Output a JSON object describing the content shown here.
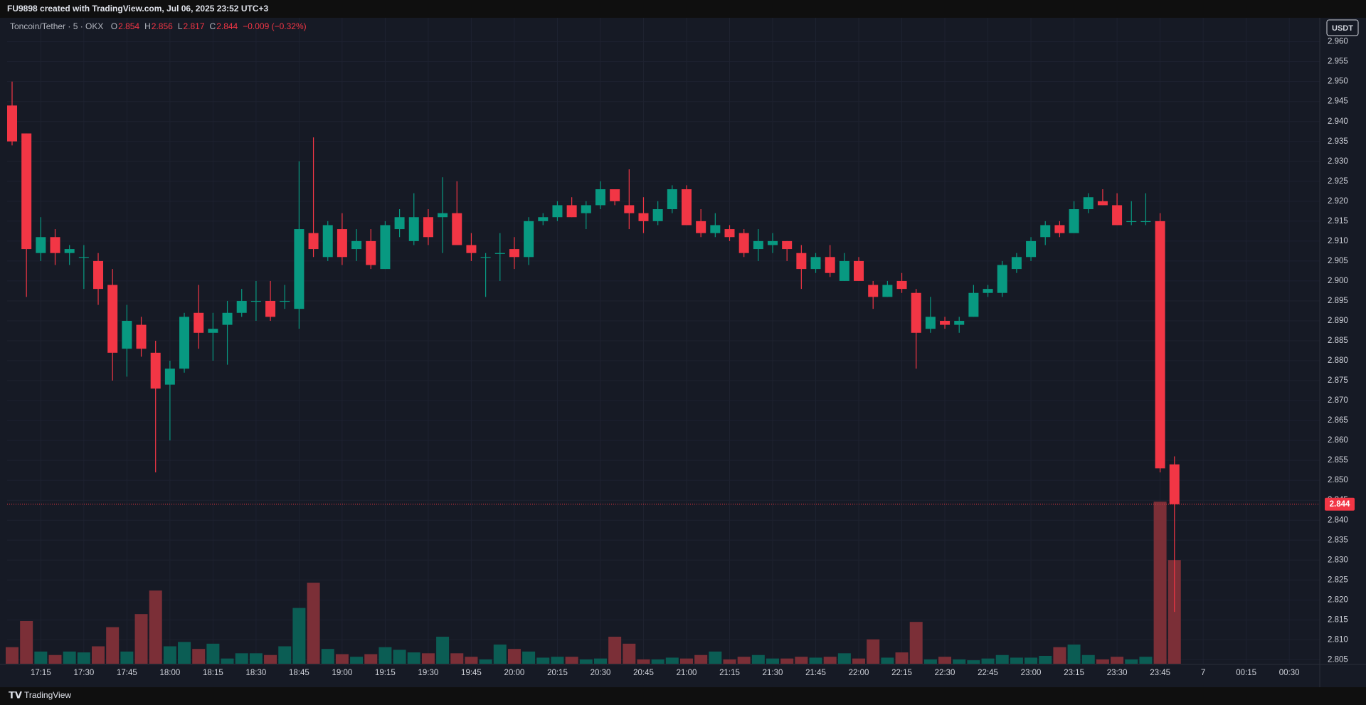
{
  "header": "FU9898 created with TradingView.com, Jul 06, 2025 23:52 UTC+3",
  "footer": "TradingView",
  "currency": "USDT",
  "chart_data": {
    "type": "candlestick",
    "symbol": "Toncoin/Tether · 5 · OKX",
    "ohlc_labels": [
      "O",
      "H",
      "L",
      "C"
    ],
    "change_label": "−0.009 (−0.32%)",
    "up_color": "#089981",
    "down_color": "#f23645",
    "volume_up_color": "#0b5d54",
    "volume_down_color": "#7b2f37",
    "grid": true,
    "x": [
      "17:05",
      "17:10",
      "17:15",
      "17:20",
      "17:25",
      "17:30",
      "17:35",
      "17:40",
      "17:45",
      "17:50",
      "17:55",
      "18:00",
      "18:05",
      "18:10",
      "18:15",
      "18:20",
      "18:25",
      "18:30",
      "18:35",
      "18:40",
      "18:45",
      "18:50",
      "18:55",
      "19:00",
      "19:05",
      "19:10",
      "19:15",
      "19:20",
      "19:25",
      "19:30",
      "19:35",
      "19:40",
      "19:45",
      "19:50",
      "19:55",
      "20:00",
      "20:05",
      "20:10",
      "20:15",
      "20:20",
      "20:25",
      "20:30",
      "20:35",
      "20:40",
      "20:45",
      "20:50",
      "20:55",
      "21:00",
      "21:05",
      "21:10",
      "21:15",
      "21:20",
      "21:25",
      "21:30",
      "21:35",
      "21:40",
      "21:45",
      "21:50",
      "21:55",
      "22:00",
      "22:05",
      "22:10",
      "22:15",
      "22:20",
      "22:25",
      "22:30",
      "22:35",
      "22:40",
      "22:45",
      "22:50",
      "22:55",
      "23:00",
      "23:05",
      "23:10",
      "23:15",
      "23:20",
      "23:25",
      "23:30",
      "23:35",
      "23:40",
      "23:45",
      "23:50"
    ],
    "open": [
      2.944,
      2.937,
      2.907,
      2.911,
      2.907,
      2.906,
      2.905,
      2.899,
      2.883,
      2.889,
      2.882,
      2.874,
      2.878,
      2.892,
      2.887,
      2.889,
      2.892,
      2.895,
      2.895,
      2.895,
      2.893,
      2.912,
      2.906,
      2.913,
      2.908,
      2.91,
      2.903,
      2.913,
      2.91,
      2.916,
      2.916,
      2.917,
      2.909,
      2.906,
      2.907,
      2.908,
      2.906,
      2.915,
      2.916,
      2.919,
      2.917,
      2.919,
      2.923,
      2.919,
      2.917,
      2.915,
      2.918,
      2.923,
      2.915,
      2.912,
      2.913,
      2.912,
      2.908,
      2.909,
      2.91,
      2.907,
      2.903,
      2.906,
      2.9,
      2.905,
      2.899,
      2.896,
      2.9,
      2.897,
      2.888,
      2.89,
      2.889,
      2.891,
      2.897,
      2.897,
      2.903,
      2.906,
      2.911,
      2.914,
      2.912,
      2.918,
      2.92,
      2.919,
      2.915,
      2.915,
      2.915,
      2.854
    ],
    "high": [
      2.95,
      2.937,
      2.916,
      2.913,
      2.909,
      2.909,
      2.907,
      2.903,
      2.894,
      2.891,
      2.885,
      2.88,
      2.892,
      2.899,
      2.892,
      2.895,
      2.898,
      2.9,
      2.9,
      2.899,
      2.93,
      2.936,
      2.915,
      2.917,
      2.913,
      2.913,
      2.915,
      2.918,
      2.922,
      2.918,
      2.926,
      2.925,
      2.912,
      2.907,
      2.912,
      2.911,
      2.916,
      2.917,
      2.92,
      2.921,
      2.92,
      2.925,
      2.923,
      2.928,
      2.921,
      2.92,
      2.924,
      2.924,
      2.918,
      2.917,
      2.914,
      2.913,
      2.913,
      2.912,
      2.91,
      2.909,
      2.907,
      2.909,
      2.907,
      2.906,
      2.9,
      2.9,
      2.902,
      2.898,
      2.896,
      2.891,
      2.891,
      2.899,
      2.899,
      2.905,
      2.907,
      2.911,
      2.915,
      2.915,
      2.92,
      2.922,
      2.923,
      2.922,
      2.92,
      2.922,
      2.917,
      2.856
    ],
    "low": [
      2.934,
      2.896,
      2.905,
      2.904,
      2.904,
      2.898,
      2.894,
      2.875,
      2.876,
      2.881,
      2.852,
      2.86,
      2.877,
      2.883,
      2.88,
      2.879,
      2.891,
      2.89,
      2.89,
      2.893,
      2.888,
      2.906,
      2.905,
      2.904,
      2.905,
      2.903,
      2.903,
      2.911,
      2.909,
      2.909,
      2.907,
      2.909,
      2.905,
      2.896,
      2.9,
      2.903,
      2.904,
      2.914,
      2.915,
      2.916,
      2.913,
      2.918,
      2.919,
      2.913,
      2.912,
      2.914,
      2.917,
      2.914,
      2.911,
      2.911,
      2.91,
      2.906,
      2.905,
      2.907,
      2.905,
      2.898,
      2.902,
      2.901,
      2.9,
      2.9,
      2.893,
      2.896,
      2.897,
      2.878,
      2.887,
      2.888,
      2.887,
      2.891,
      2.896,
      2.896,
      2.902,
      2.905,
      2.909,
      2.911,
      2.912,
      2.917,
      2.919,
      2.914,
      2.914,
      2.914,
      2.852,
      2.817
    ],
    "close": [
      2.935,
      2.908,
      2.911,
      2.907,
      2.908,
      2.906,
      2.898,
      2.882,
      2.89,
      2.883,
      2.873,
      2.878,
      2.891,
      2.887,
      2.888,
      2.892,
      2.895,
      2.895,
      2.891,
      2.895,
      2.913,
      2.908,
      2.914,
      2.906,
      2.91,
      2.904,
      2.914,
      2.916,
      2.916,
      2.911,
      2.917,
      2.909,
      2.907,
      2.906,
      2.907,
      2.906,
      2.915,
      2.916,
      2.919,
      2.916,
      2.919,
      2.923,
      2.92,
      2.917,
      2.915,
      2.918,
      2.923,
      2.914,
      2.912,
      2.914,
      2.911,
      2.907,
      2.91,
      2.91,
      2.908,
      2.903,
      2.906,
      2.902,
      2.905,
      2.9,
      2.896,
      2.899,
      2.898,
      2.887,
      2.891,
      2.889,
      2.89,
      2.897,
      2.898,
      2.904,
      2.906,
      2.91,
      2.914,
      2.912,
      2.918,
      2.921,
      2.919,
      2.914,
      2.915,
      2.915,
      2.853,
      2.844
    ],
    "volume": [
      19,
      49,
      14,
      10,
      14,
      13,
      20,
      42,
      14,
      57,
      84,
      20,
      25,
      17,
      23,
      6,
      12,
      12,
      10,
      20,
      64,
      93,
      17,
      11,
      8,
      11,
      19,
      16,
      13,
      12,
      31,
      12,
      8,
      5,
      22,
      17,
      14,
      7,
      8,
      8,
      5,
      6,
      31,
      23,
      5,
      5,
      7,
      6,
      10,
      14,
      5,
      8,
      10,
      6,
      6,
      8,
      7,
      8,
      12,
      6,
      28,
      7,
      13,
      48,
      5,
      8,
      5,
      4,
      6,
      10,
      7,
      7,
      9,
      19,
      22,
      10,
      5,
      8,
      5,
      8,
      186,
      119
    ],
    "vlim": [
      0,
      200
    ],
    "ylim": [
      2.804,
      2.966
    ],
    "yticks": [
      {
        "value": 2.96,
        "label": "2.960"
      },
      2.955,
      {
        "value": 2.95,
        "label": "2.950"
      },
      2.945,
      {
        "value": 2.94,
        "label": "2.940"
      },
      2.935,
      {
        "value": 2.93,
        "label": "2.930"
      },
      2.925,
      {
        "value": 2.92,
        "label": "2.920"
      },
      2.915,
      {
        "value": 2.91,
        "label": "2.910"
      },
      2.905,
      {
        "value": 2.9,
        "label": "2.900"
      },
      2.895,
      {
        "value": 2.89,
        "label": "2.890"
      },
      2.885,
      {
        "value": 2.88,
        "label": "2.880"
      },
      2.875,
      {
        "value": 2.87,
        "label": "2.870"
      },
      2.865,
      {
        "value": 2.86,
        "label": "2.860"
      },
      2.855,
      {
        "value": 2.85,
        "label": "2.850"
      },
      2.845,
      {
        "value": 2.84,
        "label": "2.840"
      },
      2.835,
      {
        "value": 2.83,
        "label": "2.830"
      },
      2.825,
      {
        "value": 2.82,
        "label": "2.820"
      },
      2.815,
      {
        "value": 2.81,
        "label": "2.810"
      },
      2.805
    ],
    "xticks": [
      "17:15",
      "17:30",
      "17:45",
      "18:00",
      "18:15",
      "18:30",
      "18:45",
      "19:00",
      "19:15",
      "19:30",
      "19:45",
      "20:00",
      "20:15",
      "20:30",
      "20:45",
      "21:00",
      "21:15",
      "21:30",
      "21:45",
      "22:00",
      "22:15",
      "22:30",
      "22:45",
      "23:00",
      "23:15",
      "23:30",
      "23:45",
      {
        "value": "00:00",
        "label": "7"
      },
      "00:15",
      "00:30"
    ]
  }
}
